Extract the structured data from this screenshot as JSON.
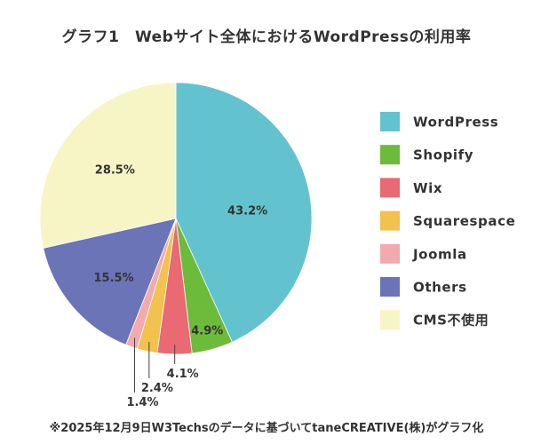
{
  "chart_data": {
    "type": "pie",
    "title": "グラフ1　Webサイト全体におけるWordPressの利用率",
    "categories": [
      "WordPress",
      "Shopify",
      "Wix",
      "Squarespace",
      "Joomla",
      "Others",
      "CMS不使用"
    ],
    "values": [
      43.2,
      4.9,
      4.1,
      2.4,
      1.4,
      15.5,
      28.5
    ],
    "data_labels": [
      "43.2%",
      "4.9%",
      "4.1%",
      "2.4%",
      "1.4%",
      "15.5%",
      "28.5%"
    ],
    "colors": [
      "#62C3CE",
      "#6DBB3A",
      "#E96A72",
      "#F2C14E",
      "#F2AAAE",
      "#6B74B7",
      "#F7F5C6"
    ],
    "legend_position": "right"
  },
  "footnote": "※2025年12月9日W3Techsのデータに基づいてtaneCREATIVE(株)がグラフ化"
}
